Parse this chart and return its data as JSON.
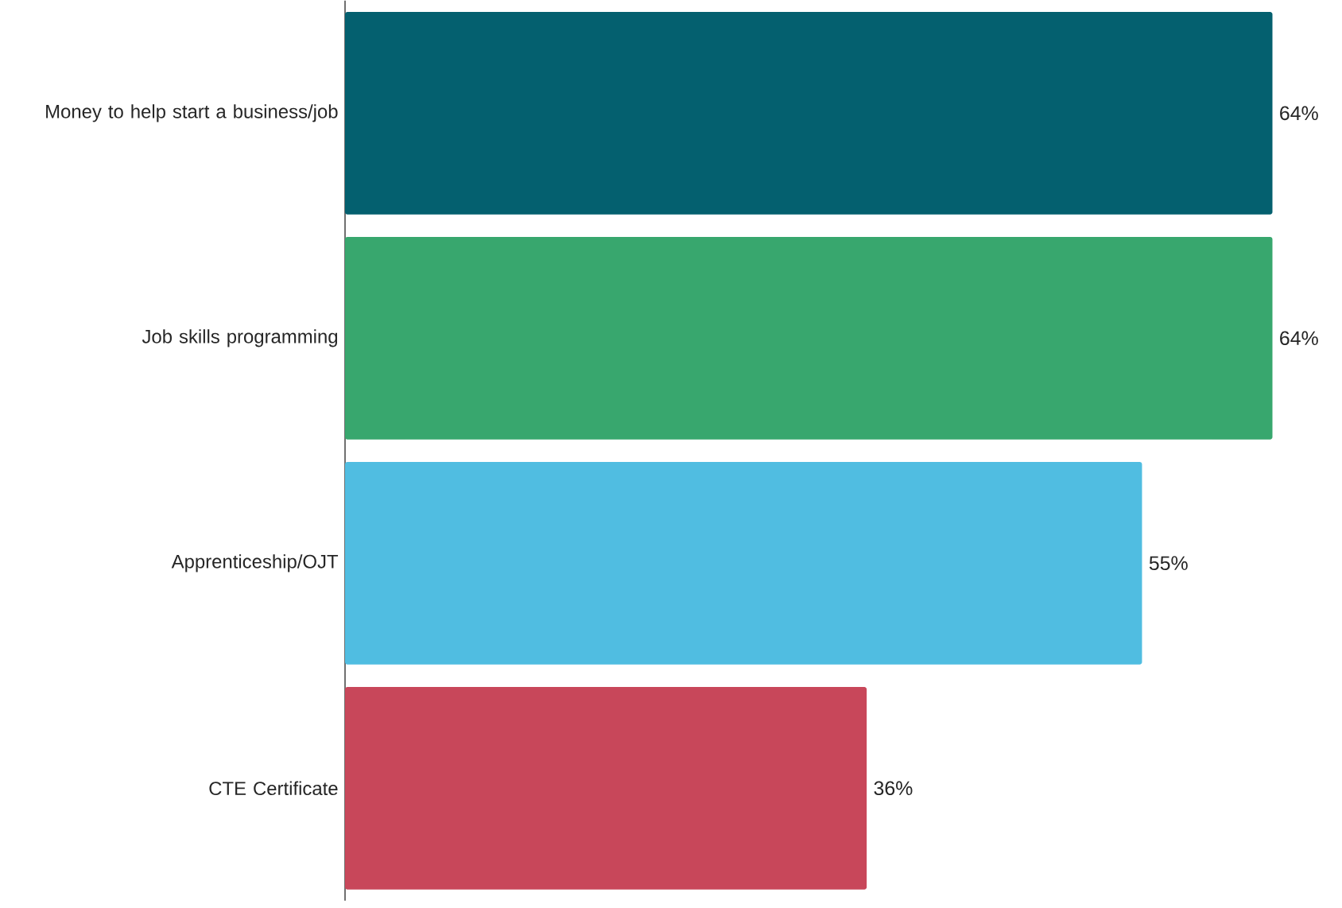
{
  "chart_data": {
    "type": "bar",
    "orientation": "horizontal",
    "categories": [
      "Money to help start a business/job",
      "Job skills programming",
      "Apprenticeship/OJT",
      "CTE Certificate"
    ],
    "values": [
      64,
      64,
      55,
      36
    ],
    "colors": [
      "#04606f",
      "#38a76e",
      "#50bde1",
      "#c8475a"
    ],
    "value_labels": [
      "64%",
      "64%",
      "55%",
      "36%"
    ]
  }
}
